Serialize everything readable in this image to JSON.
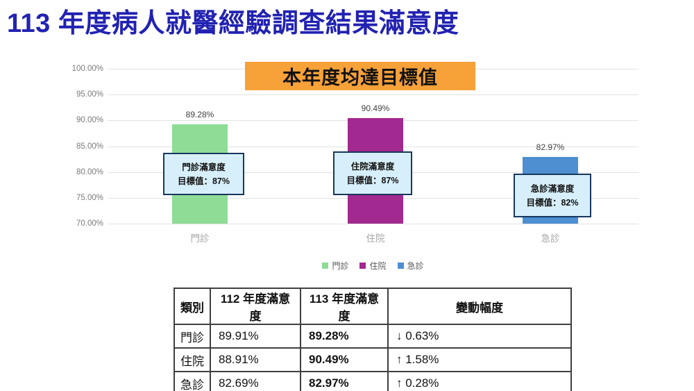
{
  "page": {
    "title": "113 年度病人就醫經驗調查結果滿意度"
  },
  "banner": {
    "text": "本年度均達目標值",
    "bg_color": "#f7a139"
  },
  "chart_data": {
    "type": "bar",
    "title": "113 年度病人就醫經驗調查結果滿意度",
    "categories": [
      "門診",
      "住院",
      "急診"
    ],
    "values": [
      89.28,
      90.49,
      82.97
    ],
    "value_labels": [
      "89.28%",
      "90.49%",
      "82.97%"
    ],
    "bar_colors": [
      "#8edc96",
      "#a2298f",
      "#4d8fd1"
    ],
    "xlabel": "",
    "ylabel": "",
    "ylim": [
      70,
      100
    ],
    "yticks": [
      "100.00%",
      "95.00%",
      "90.00%",
      "85.00%",
      "80.00%",
      "75.00%",
      "70.00%"
    ],
    "grid": true,
    "legend_position": "bottom",
    "legend": [
      {
        "label": "門診",
        "color": "#8edc96"
      },
      {
        "label": "住院",
        "color": "#a2298f"
      },
      {
        "label": "急診",
        "color": "#4d8fd1"
      }
    ],
    "annotations": [
      {
        "line1": "門診滿意度",
        "line2": "目標值：87%",
        "target": 87
      },
      {
        "line1": "住院滿意度",
        "line2": "目標值：87%",
        "target": 87
      },
      {
        "line1": "急診滿意度",
        "line2": "目標值：82%",
        "target": 82
      }
    ]
  },
  "table": {
    "headers": [
      "類別",
      "112 年度滿意度",
      "113 年度滿意度",
      "變動幅度"
    ],
    "rows": [
      [
        "門診",
        "89.91%",
        "89.28%",
        "↓ 0.63%"
      ],
      [
        "住院",
        "88.91%",
        "90.49%",
        "↑ 1.58%"
      ],
      [
        "急診",
        "82.69%",
        "82.97%",
        "↑ 0.28%"
      ]
    ]
  }
}
